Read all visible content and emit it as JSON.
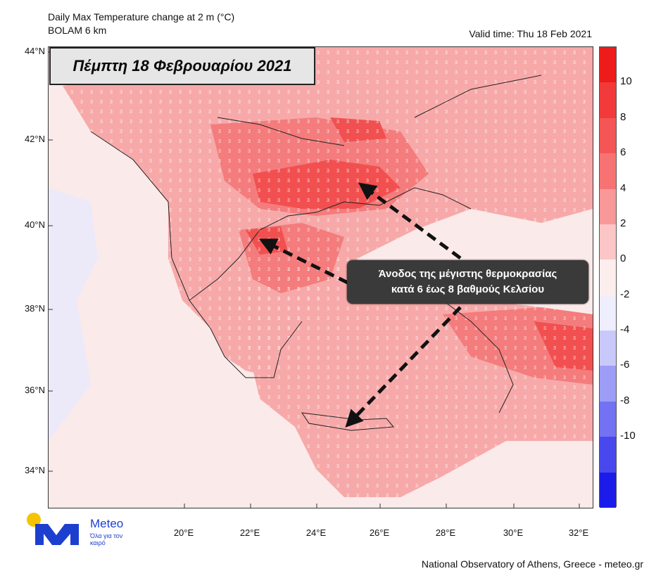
{
  "header": {
    "title_line1": "Daily Max Temperature change at 2 m (°C)",
    "title_line2": "BOLAM 6 km",
    "valid_time": "Valid time: Thu 18 Feb 2021"
  },
  "date_box": "Πέμπτη 18 Φεβρουαρίου 2021",
  "callout": {
    "line1": "Άνοδος της μέγιστης θερμοκρασίας",
    "line2": "κατά 6 έως 8 βαθμούς Κελσίου"
  },
  "axes": {
    "lat_labels": [
      "44°N",
      "42°N",
      "40°N",
      "38°N",
      "36°N",
      "34°N"
    ],
    "lon_labels": [
      "20°E",
      "22°E",
      "24°E",
      "26°E",
      "28°E",
      "30°E",
      "32°E"
    ]
  },
  "colorbar": {
    "labels": [
      "10",
      "8",
      "6",
      "4",
      "2",
      "0",
      "-2",
      "-4",
      "-6",
      "-8",
      "-10"
    ],
    "colors": [
      "#ee1b1b",
      "#f23a3a",
      "#f55555",
      "#f77373",
      "#f99898",
      "#fcc6c6",
      "#fdeeee",
      "#eeeefd",
      "#c8c8fb",
      "#9d9df7",
      "#7272f3",
      "#4848ee",
      "#1c1cea"
    ]
  },
  "branding": {
    "name": "Meteo",
    "tagline": "Όλα για τον καιρό"
  },
  "footer": "National Observatory of Athens, Greece - meteo.gr"
}
